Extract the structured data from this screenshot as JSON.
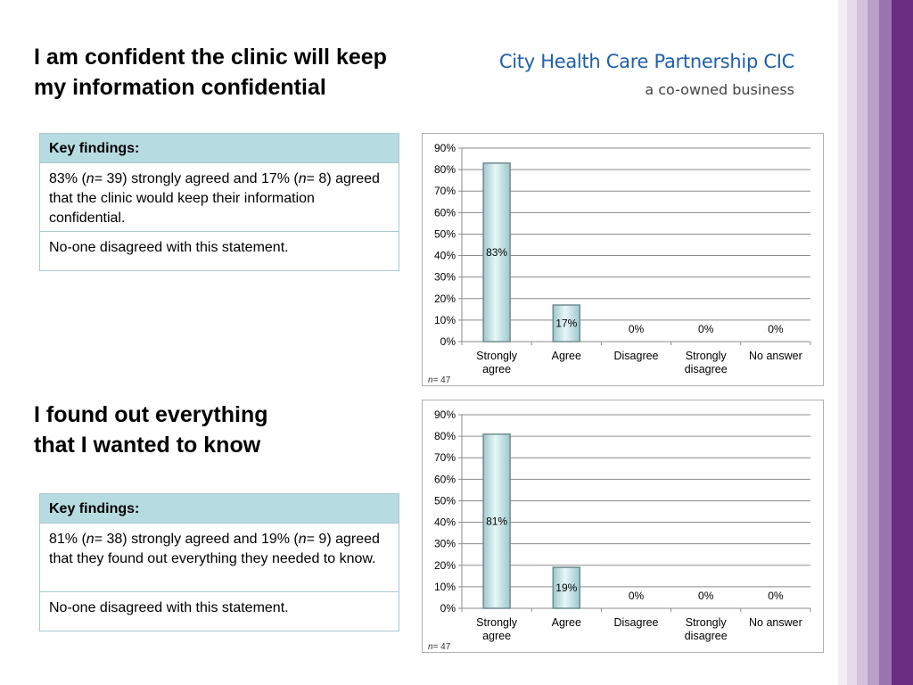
{
  "brand": {
    "name": "City Health Care Partnership CIC",
    "tagline": "a co-owned business"
  },
  "sections": [
    {
      "heading_lines": [
        "I am confident the clinic will keep",
        "my information confidential"
      ],
      "findings": {
        "title": "Key findings:",
        "rows": [
          [
            {
              "t": "83% ("
            },
            {
              "t": "n",
              "i": true
            },
            {
              "t": "= 39) strongly agreed and 17% ("
            },
            {
              "t": "n",
              "i": true
            },
            {
              "t": "= 8) agreed that the clinic would keep their information confidential."
            }
          ],
          [
            {
              "t": "No-one disagreed with this statement."
            }
          ]
        ]
      }
    },
    {
      "heading_lines": [
        "I found out everything",
        "that I wanted to know"
      ],
      "findings": {
        "title": "Key findings:",
        "rows": [
          [
            {
              "t": "81% ("
            },
            {
              "t": "n",
              "i": true
            },
            {
              "t": "= 38) strongly agreed and  19% ("
            },
            {
              "t": "n",
              "i": true
            },
            {
              "t": "= 9) agreed that they found out everything they needed to know."
            }
          ],
          [
            {
              "t": "No-one disagreed with this statement."
            }
          ]
        ]
      }
    }
  ],
  "chart_data": [
    {
      "type": "bar",
      "categories": [
        [
          "Strongly",
          "agree"
        ],
        [
          "Agree"
        ],
        [
          "Disagree"
        ],
        [
          "Strongly",
          "disagree"
        ],
        [
          "No answer"
        ]
      ],
      "values": [
        83,
        17,
        0,
        0,
        0
      ],
      "data_labels": [
        "83%",
        "17%",
        "0%",
        "0%",
        "0%"
      ],
      "ylim": [
        0,
        90
      ],
      "yticks": [
        "0%",
        "10%",
        "20%",
        "30%",
        "40%",
        "50%",
        "60%",
        "70%",
        "80%",
        "90%"
      ],
      "grid": true,
      "note_italic": "n",
      "note_text": "= 47",
      "colors": {
        "bar": "#c4e8ea",
        "bar_edge": "#6f8b90",
        "grid": "#8c8c8c"
      }
    },
    {
      "type": "bar",
      "categories": [
        [
          "Strongly",
          "agree"
        ],
        [
          "Agree"
        ],
        [
          "Disagree"
        ],
        [
          "Strongly",
          "disagree"
        ],
        [
          "No answer"
        ]
      ],
      "values": [
        81,
        19,
        0,
        0,
        0
      ],
      "data_labels": [
        "81%",
        "19%",
        "0%",
        "0%",
        "0%"
      ],
      "ylim": [
        0,
        90
      ],
      "yticks": [
        "0%",
        "10%",
        "20%",
        "30%",
        "40%",
        "50%",
        "60%",
        "70%",
        "80%",
        "90%"
      ],
      "grid": true,
      "note_italic": "n",
      "note_text": "= 47",
      "colors": {
        "bar": "#c4e8ea",
        "bar_edge": "#6f8b90",
        "grid": "#8c8c8c"
      }
    }
  ],
  "decor": {
    "stripe_colors": [
      "#f3eef6",
      "#e6dcec",
      "#d4c2dd",
      "#bba0c9",
      "#9a74b0",
      "#6a2d7f"
    ]
  }
}
